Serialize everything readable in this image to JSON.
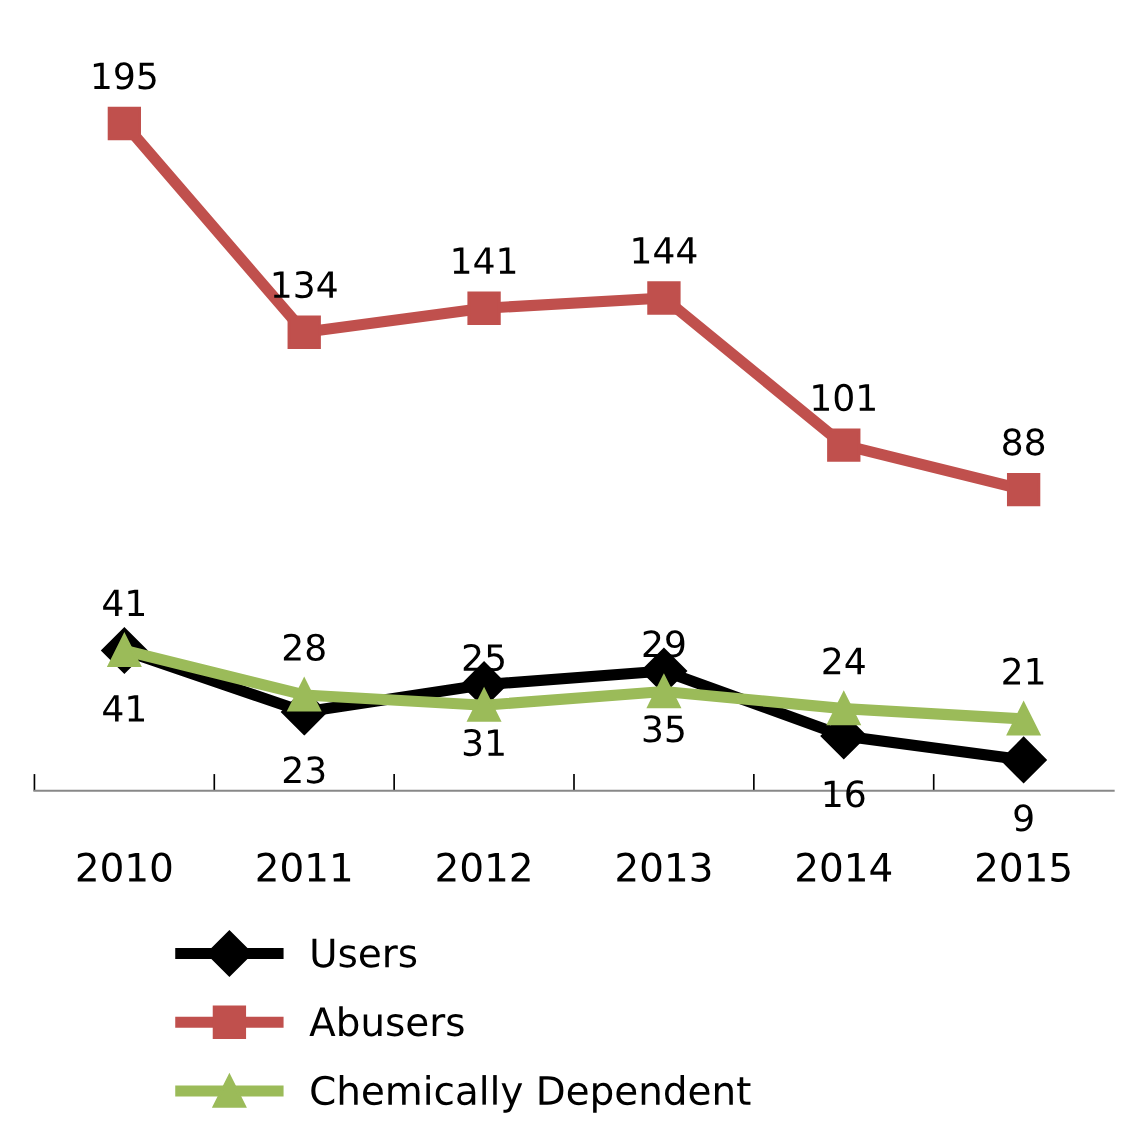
{
  "chart_data": {
    "type": "line",
    "categories": [
      "2010",
      "2011",
      "2012",
      "2013",
      "2014",
      "2015"
    ],
    "series": [
      {
        "name": "Users",
        "color": "#000000",
        "marker": "diamond",
        "values": [
          41,
          23,
          31,
          35,
          16,
          9
        ]
      },
      {
        "name": "Abusers",
        "color": "#c0504d",
        "marker": "square",
        "values": [
          195,
          134,
          141,
          144,
          101,
          88
        ]
      },
      {
        "name": "Chemically Dependent",
        "color": "#9bbb59",
        "marker": "triangle",
        "values": [
          41,
          28,
          25,
          29,
          24,
          21
        ]
      }
    ],
    "data_labels": true,
    "legend": "bottom",
    "grid": false,
    "line_style": "solid"
  }
}
